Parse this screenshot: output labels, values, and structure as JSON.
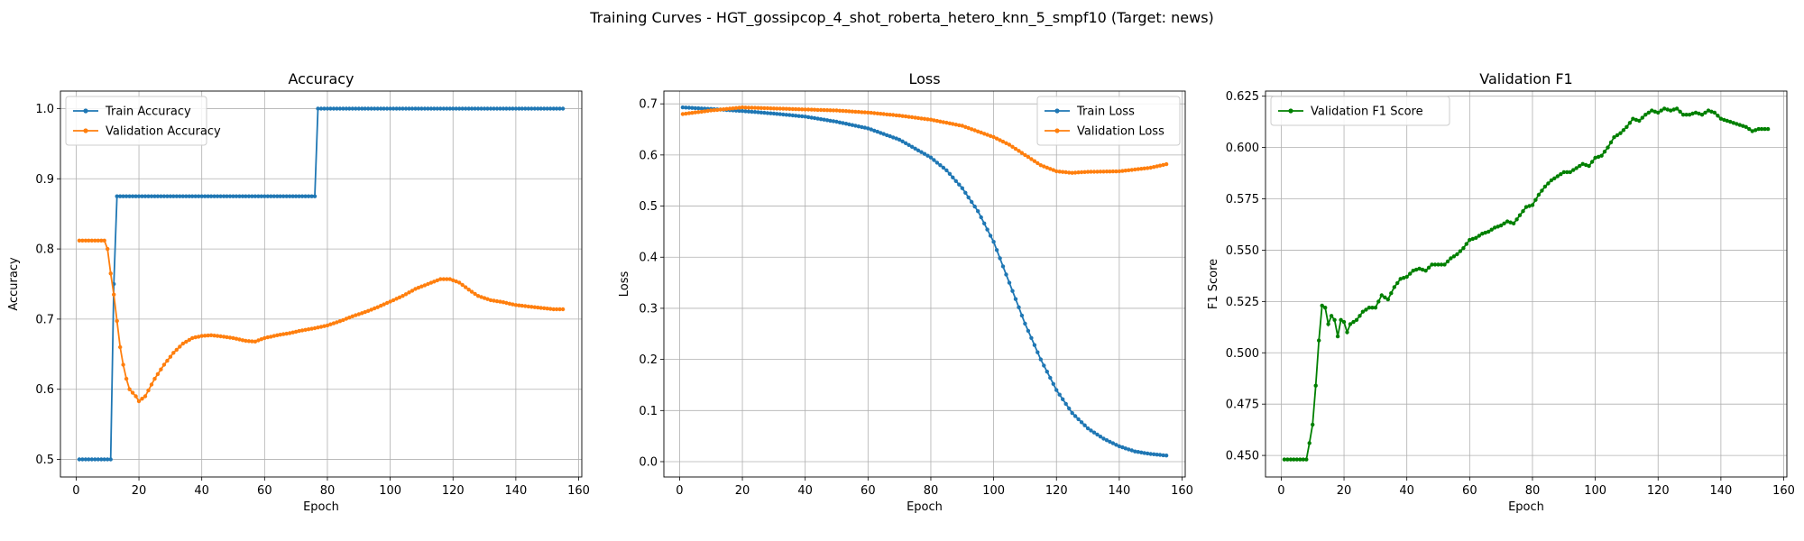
{
  "figure": {
    "suptitle": "Training Curves - HGT_gossipcop_4_shot_roberta_hetero_knn_5_smpf10 (Target: news)"
  },
  "colors": {
    "blue": "#1f77b4",
    "orange": "#ff7f0e",
    "green": "#008000",
    "grid": "#b0b0b0"
  },
  "chart_data": [
    {
      "type": "line",
      "title": "Accuracy",
      "xlabel": "Epoch",
      "ylabel": "Accuracy",
      "xlim": [
        -5,
        161
      ],
      "ylim": [
        0.475,
        1.025
      ],
      "xticks": [
        0,
        20,
        40,
        60,
        80,
        100,
        120,
        140,
        160
      ],
      "yticks": [
        0.5,
        0.6,
        0.7,
        0.8,
        0.9,
        1.0
      ],
      "yticklabels": [
        "0.5",
        "0.6",
        "0.7",
        "0.8",
        "0.9",
        "1.0"
      ],
      "grid": true,
      "legend": "upper-left",
      "series": [
        {
          "name": "Train Accuracy",
          "color": "#1f77b4",
          "points": [
            [
              1,
              0.5
            ],
            [
              11,
              0.5
            ],
            [
              12,
              0.75
            ],
            [
              13,
              0.875
            ],
            [
              76,
              0.875
            ],
            [
              77,
              1.0
            ],
            [
              155,
              1.0
            ]
          ]
        },
        {
          "name": "Validation Accuracy",
          "color": "#ff7f0e",
          "points": [
            [
              1,
              0.812
            ],
            [
              9,
              0.812
            ],
            [
              10,
              0.8
            ],
            [
              11,
              0.765
            ],
            [
              12,
              0.735
            ],
            [
              14,
              0.66
            ],
            [
              15,
              0.635
            ],
            [
              16,
              0.615
            ],
            [
              17,
              0.6
            ],
            [
              19,
              0.59
            ],
            [
              20,
              0.583
            ],
            [
              22,
              0.59
            ],
            [
              25,
              0.615
            ],
            [
              28,
              0.635
            ],
            [
              31,
              0.652
            ],
            [
              34,
              0.665
            ],
            [
              37,
              0.673
            ],
            [
              40,
              0.676
            ],
            [
              43,
              0.677
            ],
            [
              47,
              0.675
            ],
            [
              50,
              0.673
            ],
            [
              54,
              0.669
            ],
            [
              57,
              0.668
            ],
            [
              60,
              0.673
            ],
            [
              64,
              0.677
            ],
            [
              68,
              0.68
            ],
            [
              72,
              0.684
            ],
            [
              76,
              0.687
            ],
            [
              80,
              0.691
            ],
            [
              84,
              0.697
            ],
            [
              88,
              0.704
            ],
            [
              92,
              0.71
            ],
            [
              96,
              0.717
            ],
            [
              100,
              0.725
            ],
            [
              104,
              0.733
            ],
            [
              108,
              0.743
            ],
            [
              112,
              0.75
            ],
            [
              116,
              0.757
            ],
            [
              119,
              0.757
            ],
            [
              122,
              0.752
            ],
            [
              125,
              0.742
            ],
            [
              128,
              0.733
            ],
            [
              132,
              0.727
            ],
            [
              136,
              0.724
            ],
            [
              140,
              0.72
            ],
            [
              144,
              0.718
            ],
            [
              148,
              0.716
            ],
            [
              152,
              0.714
            ],
            [
              155,
              0.714
            ]
          ]
        }
      ]
    },
    {
      "type": "line",
      "title": "Loss",
      "xlabel": "Epoch",
      "ylabel": "Loss",
      "xlim": [
        -5,
        161
      ],
      "ylim": [
        -0.03,
        0.725
      ],
      "xticks": [
        0,
        20,
        40,
        60,
        80,
        100,
        120,
        140,
        160
      ],
      "yticks": [
        0.0,
        0.1,
        0.2,
        0.3,
        0.4,
        0.5,
        0.6,
        0.7
      ],
      "yticklabels": [
        "0.0",
        "0.1",
        "0.2",
        "0.3",
        "0.4",
        "0.5",
        "0.6",
        "0.7"
      ],
      "grid": true,
      "legend": "upper-right",
      "series": [
        {
          "name": "Train Loss",
          "color": "#1f77b4",
          "points": [
            [
              1,
              0.693
            ],
            [
              10,
              0.69
            ],
            [
              20,
              0.686
            ],
            [
              30,
              0.681
            ],
            [
              40,
              0.675
            ],
            [
              50,
              0.665
            ],
            [
              60,
              0.652
            ],
            [
              70,
              0.63
            ],
            [
              80,
              0.595
            ],
            [
              85,
              0.57
            ],
            [
              90,
              0.535
            ],
            [
              95,
              0.49
            ],
            [
              100,
              0.43
            ],
            [
              105,
              0.35
            ],
            [
              110,
              0.27
            ],
            [
              115,
              0.2
            ],
            [
              120,
              0.14
            ],
            [
              125,
              0.095
            ],
            [
              130,
              0.065
            ],
            [
              135,
              0.045
            ],
            [
              140,
              0.03
            ],
            [
              145,
              0.02
            ],
            [
              150,
              0.015
            ],
            [
              155,
              0.012
            ]
          ]
        },
        {
          "name": "Validation Loss",
          "color": "#ff7f0e",
          "points": [
            [
              1,
              0.68
            ],
            [
              10,
              0.687
            ],
            [
              20,
              0.693
            ],
            [
              30,
              0.691
            ],
            [
              40,
              0.689
            ],
            [
              50,
              0.687
            ],
            [
              60,
              0.683
            ],
            [
              70,
              0.677
            ],
            [
              80,
              0.669
            ],
            [
              90,
              0.657
            ],
            [
              100,
              0.635
            ],
            [
              105,
              0.62
            ],
            [
              110,
              0.6
            ],
            [
              115,
              0.58
            ],
            [
              120,
              0.568
            ],
            [
              125,
              0.565
            ],
            [
              130,
              0.567
            ],
            [
              140,
              0.568
            ],
            [
              150,
              0.575
            ],
            [
              155,
              0.582
            ]
          ]
        }
      ]
    },
    {
      "type": "line",
      "title": "Validation F1",
      "xlabel": "Epoch",
      "ylabel": "F1 Score",
      "xlim": [
        -5,
        161
      ],
      "ylim": [
        0.4395,
        0.6275
      ],
      "xticks": [
        0,
        20,
        40,
        60,
        80,
        100,
        120,
        140,
        160
      ],
      "yticks": [
        0.45,
        0.475,
        0.5,
        0.525,
        0.55,
        0.575,
        0.6,
        0.625
      ],
      "yticklabels": [
        "0.450",
        "0.475",
        "0.500",
        "0.525",
        "0.550",
        "0.575",
        "0.600",
        "0.625"
      ],
      "grid": true,
      "legend": "upper-left",
      "series": [
        {
          "name": "Validation F1 Score",
          "color": "#008000",
          "points": [
            [
              1,
              0.448
            ],
            [
              8,
              0.448
            ],
            [
              9,
              0.456
            ],
            [
              10,
              0.465
            ],
            [
              11,
              0.484
            ],
            [
              12,
              0.506
            ],
            [
              13,
              0.523
            ],
            [
              14,
              0.522
            ],
            [
              15,
              0.514
            ],
            [
              16,
              0.518
            ],
            [
              17,
              0.516
            ],
            [
              18,
              0.508
            ],
            [
              19,
              0.516
            ],
            [
              20,
              0.515
            ],
            [
              21,
              0.51
            ],
            [
              22,
              0.514
            ],
            [
              24,
              0.516
            ],
            [
              26,
              0.52
            ],
            [
              28,
              0.522
            ],
            [
              30,
              0.522
            ],
            [
              32,
              0.528
            ],
            [
              34,
              0.526
            ],
            [
              36,
              0.532
            ],
            [
              38,
              0.536
            ],
            [
              40,
              0.537
            ],
            [
              42,
              0.54
            ],
            [
              44,
              0.541
            ],
            [
              46,
              0.54
            ],
            [
              48,
              0.543
            ],
            [
              50,
              0.543
            ],
            [
              52,
              0.543
            ],
            [
              54,
              0.546
            ],
            [
              56,
              0.548
            ],
            [
              58,
              0.551
            ],
            [
              60,
              0.555
            ],
            [
              62,
              0.556
            ],
            [
              64,
              0.558
            ],
            [
              66,
              0.559
            ],
            [
              68,
              0.561
            ],
            [
              70,
              0.562
            ],
            [
              72,
              0.564
            ],
            [
              74,
              0.563
            ],
            [
              76,
              0.567
            ],
            [
              78,
              0.571
            ],
            [
              80,
              0.572
            ],
            [
              82,
              0.577
            ],
            [
              84,
              0.581
            ],
            [
              86,
              0.584
            ],
            [
              88,
              0.586
            ],
            [
              90,
              0.588
            ],
            [
              92,
              0.588
            ],
            [
              94,
              0.59
            ],
            [
              96,
              0.592
            ],
            [
              98,
              0.591
            ],
            [
              100,
              0.595
            ],
            [
              102,
              0.596
            ],
            [
              104,
              0.6
            ],
            [
              106,
              0.605
            ],
            [
              108,
              0.607
            ],
            [
              110,
              0.61
            ],
            [
              112,
              0.614
            ],
            [
              114,
              0.613
            ],
            [
              116,
              0.616
            ],
            [
              118,
              0.618
            ],
            [
              120,
              0.617
            ],
            [
              122,
              0.619
            ],
            [
              124,
              0.618
            ],
            [
              126,
              0.619
            ],
            [
              128,
              0.616
            ],
            [
              130,
              0.616
            ],
            [
              132,
              0.617
            ],
            [
              134,
              0.616
            ],
            [
              136,
              0.618
            ],
            [
              138,
              0.617
            ],
            [
              140,
              0.614
            ],
            [
              142,
              0.613
            ],
            [
              144,
              0.612
            ],
            [
              146,
              0.611
            ],
            [
              148,
              0.61
            ],
            [
              150,
              0.608
            ],
            [
              152,
              0.609
            ],
            [
              155,
              0.609
            ]
          ]
        }
      ]
    }
  ]
}
